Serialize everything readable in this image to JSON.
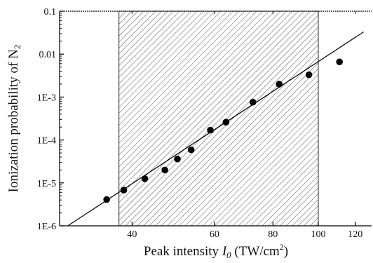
{
  "chart_data": {
    "type": "scatter",
    "xlabel": {
      "prefix": "Peak intensity ",
      "symbol": "I",
      "subscript": "0",
      "units_pre": " (TW/cm",
      "units_sup": "2",
      "units_post": ")"
    },
    "ylabel": {
      "main": "Ionization probability of N",
      "subscript": "2"
    },
    "x_scale": "log",
    "y_scale": "log",
    "xlim": [
      28,
      130
    ],
    "ylim": [
      1e-06,
      0.1
    ],
    "x_ticks": [
      {
        "value": 40,
        "label": "40"
      },
      {
        "value": 60,
        "label": "60"
      },
      {
        "value": 80,
        "label": "80"
      },
      {
        "value": 100,
        "label": "100"
      },
      {
        "value": 120,
        "label": "120"
      }
    ],
    "y_ticks": [
      {
        "value": 0.1,
        "label": "0.1"
      },
      {
        "value": 0.01,
        "label": "0.01"
      },
      {
        "value": 0.001,
        "label": "1E-3"
      },
      {
        "value": 0.0001,
        "label": "1E-4"
      },
      {
        "value": 1e-05,
        "label": "1E-5"
      },
      {
        "value": 1e-06,
        "label": "1E-6"
      }
    ],
    "shaded_region": {
      "x_from": 37.5,
      "x_to": 100,
      "pattern": "diagonal-hatch"
    },
    "grid": false,
    "series": [
      {
        "marker": "filled-circle",
        "points": [
          {
            "x": 35.3,
            "y": 4.1e-06
          },
          {
            "x": 38.4,
            "y": 6.8e-06
          },
          {
            "x": 42.6,
            "y": 1.25e-05
          },
          {
            "x": 47,
            "y": 2e-05
          },
          {
            "x": 50,
            "y": 3.6e-05
          },
          {
            "x": 53.5,
            "y": 5.9e-05
          },
          {
            "x": 58.8,
            "y": 0.00017
          },
          {
            "x": 63.5,
            "y": 0.00026
          },
          {
            "x": 72.5,
            "y": 0.00076
          },
          {
            "x": 82.5,
            "y": 0.002
          },
          {
            "x": 95.5,
            "y": 0.0033
          },
          {
            "x": 111,
            "y": 0.0066
          }
        ]
      },
      {
        "marker": "line",
        "points": [
          {
            "x": 28,
            "y": 7.5e-07
          },
          {
            "x": 125,
            "y": 0.033
          }
        ]
      }
    ]
  }
}
